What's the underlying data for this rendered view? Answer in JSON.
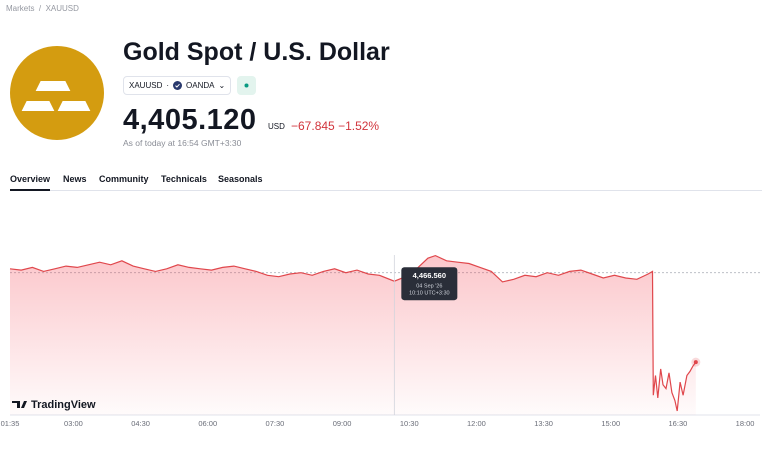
{
  "breadcrumb": [
    "Markets",
    "XAUUSD"
  ],
  "header": {
    "title": "Gold Spot / U.S. Dollar",
    "symbol": "XAUUSD",
    "exchange": "OANDA",
    "price": "4,405.120",
    "currency": "USD",
    "change": "−67.845",
    "change_percent": "−1.52%",
    "as_of": "As of today at 16:54 GMT+3:30"
  },
  "tabs": [
    "Overview",
    "News",
    "Community",
    "Technicals",
    "Seasonals"
  ],
  "chart_data": {
    "type": "line",
    "brand": "TradingView",
    "x": [
      "01:35",
      "01:50",
      "02:05",
      "02:20",
      "02:35",
      "02:50",
      "03:05",
      "03:20",
      "03:35",
      "03:50",
      "04:05",
      "04:20",
      "04:35",
      "04:50",
      "05:05",
      "05:20",
      "05:35",
      "05:50",
      "06:05",
      "06:20",
      "06:35",
      "06:50",
      "07:05",
      "07:20",
      "07:35",
      "07:50",
      "08:05",
      "08:20",
      "08:35",
      "08:50",
      "09:05",
      "09:20",
      "09:35",
      "09:50",
      "10:10",
      "10:25",
      "10:40",
      "10:55",
      "11:05",
      "11:20",
      "11:35",
      "11:50",
      "12:05",
      "12:20",
      "12:35",
      "12:50",
      "13:05",
      "13:20",
      "13:35",
      "13:50",
      "14:05",
      "14:20",
      "14:35",
      "14:50",
      "15:05",
      "15:20",
      "15:35",
      "15:50",
      "15:56",
      "15:57",
      "16:00",
      "16:03",
      "16:07",
      "16:10",
      "16:14",
      "16:18",
      "16:22",
      "16:26",
      "16:29",
      "16:33",
      "16:37",
      "16:42",
      "16:46",
      "16:50",
      "16:54"
    ],
    "series": [
      {
        "color": "#e0474c",
        "values": [
          4476,
          4475,
          4477,
          4474,
          4476,
          4478,
          4477,
          4479,
          4481,
          4479,
          4482,
          4478,
          4476,
          4474,
          4476,
          4479,
          4477,
          4476,
          4475,
          4477,
          4478,
          4476,
          4474,
          4471,
          4470,
          4472,
          4473,
          4471,
          4474,
          4476,
          4473,
          4475,
          4472,
          4471,
          4466.56,
          4470,
          4476,
          4484,
          4486,
          4482,
          4481,
          4480,
          4477,
          4474,
          4466,
          4468,
          4471,
          4470,
          4473,
          4471,
          4474,
          4475,
          4472,
          4469,
          4471,
          4469,
          4468,
          4472,
          4474,
          4380,
          4395,
          4378,
          4400,
          4388,
          4385,
          4397,
          4382,
          4376,
          4368,
          4390,
          4380,
          4395,
          4398,
          4402,
          4405.12
        ]
      }
    ],
    "xlim": [
      "01:35",
      "18:20"
    ],
    "ylim": [
      4365,
      4513
    ],
    "xticks": [
      "01:35",
      "03:00",
      "04:30",
      "06:00",
      "07:30",
      "09:00",
      "10:30",
      "12:00",
      "13:30",
      "15:00",
      "16:30",
      "18:00"
    ],
    "baseline": 4473,
    "tooltip": {
      "x": "10:10",
      "value": 4466.56,
      "label": "4,466.560",
      "date": "04 Sep '26",
      "time": "10:10 UTC+3:30"
    }
  }
}
